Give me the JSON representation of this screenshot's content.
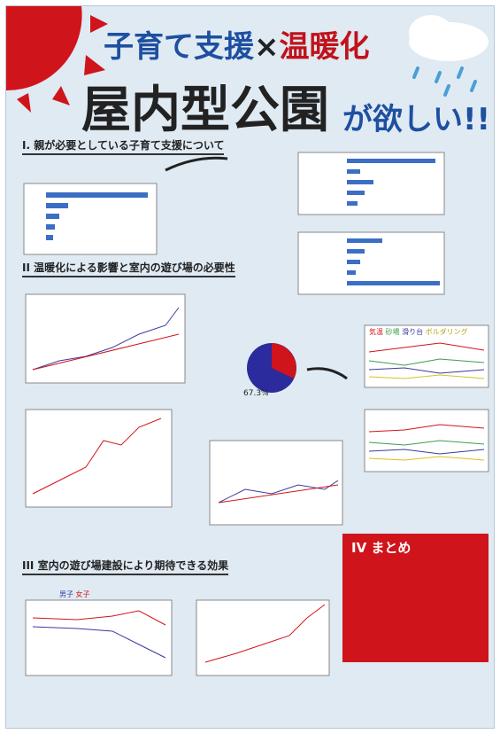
{
  "header": {
    "title_part1": "子育て支援",
    "title_times": "×",
    "title_part2": "温暖化",
    "title_main": "屋内型公園",
    "title_suffix": "が欲しい!!"
  },
  "sections": [
    {
      "heading": "I. 親が必要としている子育て支援について"
    },
    {
      "heading": "II 温暖化による影響と室内の遊び場の必要性"
    },
    {
      "heading": "III 室内の遊び場建設により期待できる効果"
    },
    {
      "heading": "IV まとめ"
    }
  ],
  "figures": {
    "pie_label": "67.3%",
    "legend_play": [
      "気温",
      "砂場",
      "滑り台",
      "ボルダリング"
    ],
    "legend_gender": [
      "男子",
      "女子"
    ]
  }
}
